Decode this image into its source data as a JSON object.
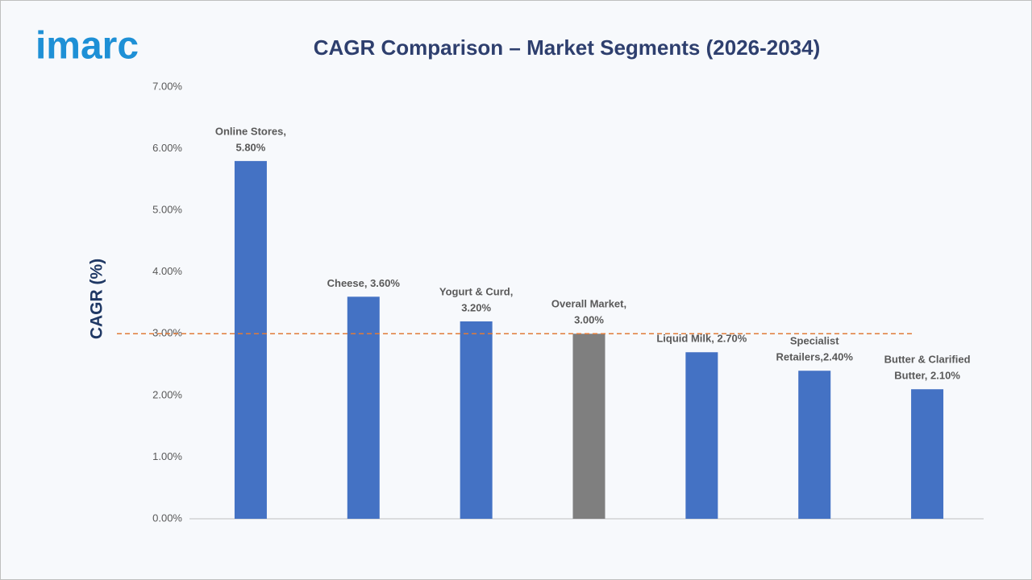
{
  "logo": "imarc",
  "chart_data": {
    "type": "bar",
    "title": "CAGR Comparison – Market Segments (2026-2034)",
    "y_label": "CAGR (%)",
    "values": [
      5.8,
      3.6,
      3.2,
      3.0,
      2.7,
      2.4,
      2.1
    ],
    "value_labels": [
      [
        "Online Stores,",
        "5.80%"
      ],
      [
        "Cheese, 3.60%"
      ],
      [
        "Yogurt & Curd,",
        "3.20%"
      ],
      [
        "Overall Market,",
        "3.00%"
      ],
      [
        "Liquid Milk, 2.70%"
      ],
      [
        "Specialist",
        "Retailers,2.40%"
      ],
      [
        "Butter & Clarified",
        "Butter, 2.10%"
      ]
    ],
    "colors": [
      "#4472c4",
      "#4472c4",
      "#4472c4",
      "#7f7f7f",
      "#4472c4",
      "#4472c4",
      "#4472c4"
    ],
    "reference_line": {
      "value": 3.0,
      "color": "#e07b39"
    },
    "ylim": [
      0,
      7
    ],
    "yticks": [
      {
        "value": 0,
        "label": "0.00%"
      },
      {
        "value": 1,
        "label": "1.00%"
      },
      {
        "value": 2,
        "label": "2.00%"
      },
      {
        "value": 3,
        "label": "3.00%"
      },
      {
        "value": 4,
        "label": "4.00%"
      },
      {
        "value": 5,
        "label": "5.00%"
      },
      {
        "value": 6,
        "label": "6.00%"
      },
      {
        "value": 7,
        "label": "7.00%"
      }
    ],
    "grid": false
  }
}
